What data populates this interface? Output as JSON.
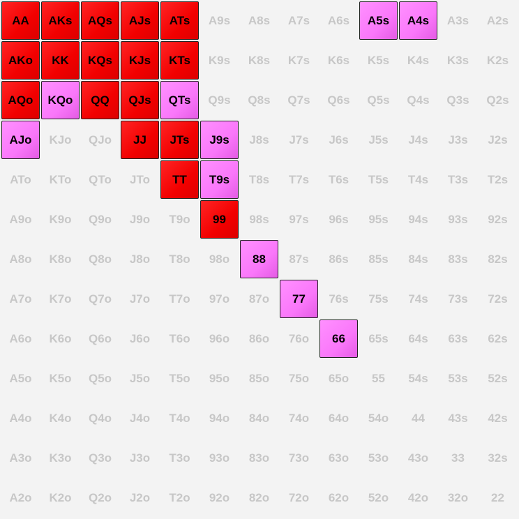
{
  "colors": {
    "background": "#f3f3f3",
    "raise": "#f20000",
    "mixed": "#fa77fa",
    "empty_text": "#c7c7c7",
    "selected_text": "#000000",
    "border": "#222222"
  },
  "rows": [
    [
      {
        "label": "AA",
        "action": "raise"
      },
      {
        "label": "AKs",
        "action": "raise"
      },
      {
        "label": "AQs",
        "action": "raise"
      },
      {
        "label": "AJs",
        "action": "raise"
      },
      {
        "label": "ATs",
        "action": "raise"
      },
      {
        "label": "A9s",
        "action": "none"
      },
      {
        "label": "A8s",
        "action": "none"
      },
      {
        "label": "A7s",
        "action": "none"
      },
      {
        "label": "A6s",
        "action": "none"
      },
      {
        "label": "A5s",
        "action": "mixed"
      },
      {
        "label": "A4s",
        "action": "mixed"
      },
      {
        "label": "A3s",
        "action": "none"
      },
      {
        "label": "A2s",
        "action": "none"
      }
    ],
    [
      {
        "label": "AKo",
        "action": "raise"
      },
      {
        "label": "KK",
        "action": "raise"
      },
      {
        "label": "KQs",
        "action": "raise"
      },
      {
        "label": "KJs",
        "action": "raise"
      },
      {
        "label": "KTs",
        "action": "raise"
      },
      {
        "label": "K9s",
        "action": "none"
      },
      {
        "label": "K8s",
        "action": "none"
      },
      {
        "label": "K7s",
        "action": "none"
      },
      {
        "label": "K6s",
        "action": "none"
      },
      {
        "label": "K5s",
        "action": "none"
      },
      {
        "label": "K4s",
        "action": "none"
      },
      {
        "label": "K3s",
        "action": "none"
      },
      {
        "label": "K2s",
        "action": "none"
      }
    ],
    [
      {
        "label": "AQo",
        "action": "raise"
      },
      {
        "label": "KQo",
        "action": "mixed"
      },
      {
        "label": "QQ",
        "action": "raise"
      },
      {
        "label": "QJs",
        "action": "raise"
      },
      {
        "label": "QTs",
        "action": "mixed"
      },
      {
        "label": "Q9s",
        "action": "none"
      },
      {
        "label": "Q8s",
        "action": "none"
      },
      {
        "label": "Q7s",
        "action": "none"
      },
      {
        "label": "Q6s",
        "action": "none"
      },
      {
        "label": "Q5s",
        "action": "none"
      },
      {
        "label": "Q4s",
        "action": "none"
      },
      {
        "label": "Q3s",
        "action": "none"
      },
      {
        "label": "Q2s",
        "action": "none"
      }
    ],
    [
      {
        "label": "AJo",
        "action": "mixed"
      },
      {
        "label": "KJo",
        "action": "none"
      },
      {
        "label": "QJo",
        "action": "none"
      },
      {
        "label": "JJ",
        "action": "raise"
      },
      {
        "label": "JTs",
        "action": "raise"
      },
      {
        "label": "J9s",
        "action": "mixed"
      },
      {
        "label": "J8s",
        "action": "none"
      },
      {
        "label": "J7s",
        "action": "none"
      },
      {
        "label": "J6s",
        "action": "none"
      },
      {
        "label": "J5s",
        "action": "none"
      },
      {
        "label": "J4s",
        "action": "none"
      },
      {
        "label": "J3s",
        "action": "none"
      },
      {
        "label": "J2s",
        "action": "none"
      }
    ],
    [
      {
        "label": "ATo",
        "action": "none"
      },
      {
        "label": "KTo",
        "action": "none"
      },
      {
        "label": "QTo",
        "action": "none"
      },
      {
        "label": "JTo",
        "action": "none"
      },
      {
        "label": "TT",
        "action": "raise"
      },
      {
        "label": "T9s",
        "action": "mixed"
      },
      {
        "label": "T8s",
        "action": "none"
      },
      {
        "label": "T7s",
        "action": "none"
      },
      {
        "label": "T6s",
        "action": "none"
      },
      {
        "label": "T5s",
        "action": "none"
      },
      {
        "label": "T4s",
        "action": "none"
      },
      {
        "label": "T3s",
        "action": "none"
      },
      {
        "label": "T2s",
        "action": "none"
      }
    ],
    [
      {
        "label": "A9o",
        "action": "none"
      },
      {
        "label": "K9o",
        "action": "none"
      },
      {
        "label": "Q9o",
        "action": "none"
      },
      {
        "label": "J9o",
        "action": "none"
      },
      {
        "label": "T9o",
        "action": "none"
      },
      {
        "label": "99",
        "action": "raise"
      },
      {
        "label": "98s",
        "action": "none"
      },
      {
        "label": "97s",
        "action": "none"
      },
      {
        "label": "96s",
        "action": "none"
      },
      {
        "label": "95s",
        "action": "none"
      },
      {
        "label": "94s",
        "action": "none"
      },
      {
        "label": "93s",
        "action": "none"
      },
      {
        "label": "92s",
        "action": "none"
      }
    ],
    [
      {
        "label": "A8o",
        "action": "none"
      },
      {
        "label": "K8o",
        "action": "none"
      },
      {
        "label": "Q8o",
        "action": "none"
      },
      {
        "label": "J8o",
        "action": "none"
      },
      {
        "label": "T8o",
        "action": "none"
      },
      {
        "label": "98o",
        "action": "none"
      },
      {
        "label": "88",
        "action": "mixed"
      },
      {
        "label": "87s",
        "action": "none"
      },
      {
        "label": "86s",
        "action": "none"
      },
      {
        "label": "85s",
        "action": "none"
      },
      {
        "label": "84s",
        "action": "none"
      },
      {
        "label": "83s",
        "action": "none"
      },
      {
        "label": "82s",
        "action": "none"
      }
    ],
    [
      {
        "label": "A7o",
        "action": "none"
      },
      {
        "label": "K7o",
        "action": "none"
      },
      {
        "label": "Q7o",
        "action": "none"
      },
      {
        "label": "J7o",
        "action": "none"
      },
      {
        "label": "T7o",
        "action": "none"
      },
      {
        "label": "97o",
        "action": "none"
      },
      {
        "label": "87o",
        "action": "none"
      },
      {
        "label": "77",
        "action": "mixed"
      },
      {
        "label": "76s",
        "action": "none"
      },
      {
        "label": "75s",
        "action": "none"
      },
      {
        "label": "74s",
        "action": "none"
      },
      {
        "label": "73s",
        "action": "none"
      },
      {
        "label": "72s",
        "action": "none"
      }
    ],
    [
      {
        "label": "A6o",
        "action": "none"
      },
      {
        "label": "K6o",
        "action": "none"
      },
      {
        "label": "Q6o",
        "action": "none"
      },
      {
        "label": "J6o",
        "action": "none"
      },
      {
        "label": "T6o",
        "action": "none"
      },
      {
        "label": "96o",
        "action": "none"
      },
      {
        "label": "86o",
        "action": "none"
      },
      {
        "label": "76o",
        "action": "none"
      },
      {
        "label": "66",
        "action": "mixed"
      },
      {
        "label": "65s",
        "action": "none"
      },
      {
        "label": "64s",
        "action": "none"
      },
      {
        "label": "63s",
        "action": "none"
      },
      {
        "label": "62s",
        "action": "none"
      }
    ],
    [
      {
        "label": "A5o",
        "action": "none"
      },
      {
        "label": "K5o",
        "action": "none"
      },
      {
        "label": "Q5o",
        "action": "none"
      },
      {
        "label": "J5o",
        "action": "none"
      },
      {
        "label": "T5o",
        "action": "none"
      },
      {
        "label": "95o",
        "action": "none"
      },
      {
        "label": "85o",
        "action": "none"
      },
      {
        "label": "75o",
        "action": "none"
      },
      {
        "label": "65o",
        "action": "none"
      },
      {
        "label": "55",
        "action": "none"
      },
      {
        "label": "54s",
        "action": "none"
      },
      {
        "label": "53s",
        "action": "none"
      },
      {
        "label": "52s",
        "action": "none"
      }
    ],
    [
      {
        "label": "A4o",
        "action": "none"
      },
      {
        "label": "K4o",
        "action": "none"
      },
      {
        "label": "Q4o",
        "action": "none"
      },
      {
        "label": "J4o",
        "action": "none"
      },
      {
        "label": "T4o",
        "action": "none"
      },
      {
        "label": "94o",
        "action": "none"
      },
      {
        "label": "84o",
        "action": "none"
      },
      {
        "label": "74o",
        "action": "none"
      },
      {
        "label": "64o",
        "action": "none"
      },
      {
        "label": "54o",
        "action": "none"
      },
      {
        "label": "44",
        "action": "none"
      },
      {
        "label": "43s",
        "action": "none"
      },
      {
        "label": "42s",
        "action": "none"
      }
    ],
    [
      {
        "label": "A3o",
        "action": "none"
      },
      {
        "label": "K3o",
        "action": "none"
      },
      {
        "label": "Q3o",
        "action": "none"
      },
      {
        "label": "J3o",
        "action": "none"
      },
      {
        "label": "T3o",
        "action": "none"
      },
      {
        "label": "93o",
        "action": "none"
      },
      {
        "label": "83o",
        "action": "none"
      },
      {
        "label": "73o",
        "action": "none"
      },
      {
        "label": "63o",
        "action": "none"
      },
      {
        "label": "53o",
        "action": "none"
      },
      {
        "label": "43o",
        "action": "none"
      },
      {
        "label": "33",
        "action": "none"
      },
      {
        "label": "32s",
        "action": "none"
      }
    ],
    [
      {
        "label": "A2o",
        "action": "none"
      },
      {
        "label": "K2o",
        "action": "none"
      },
      {
        "label": "Q2o",
        "action": "none"
      },
      {
        "label": "J2o",
        "action": "none"
      },
      {
        "label": "T2o",
        "action": "none"
      },
      {
        "label": "92o",
        "action": "none"
      },
      {
        "label": "82o",
        "action": "none"
      },
      {
        "label": "72o",
        "action": "none"
      },
      {
        "label": "62o",
        "action": "none"
      },
      {
        "label": "52o",
        "action": "none"
      },
      {
        "label": "42o",
        "action": "none"
      },
      {
        "label": "32o",
        "action": "none"
      },
      {
        "label": "22",
        "action": "none"
      }
    ]
  ]
}
